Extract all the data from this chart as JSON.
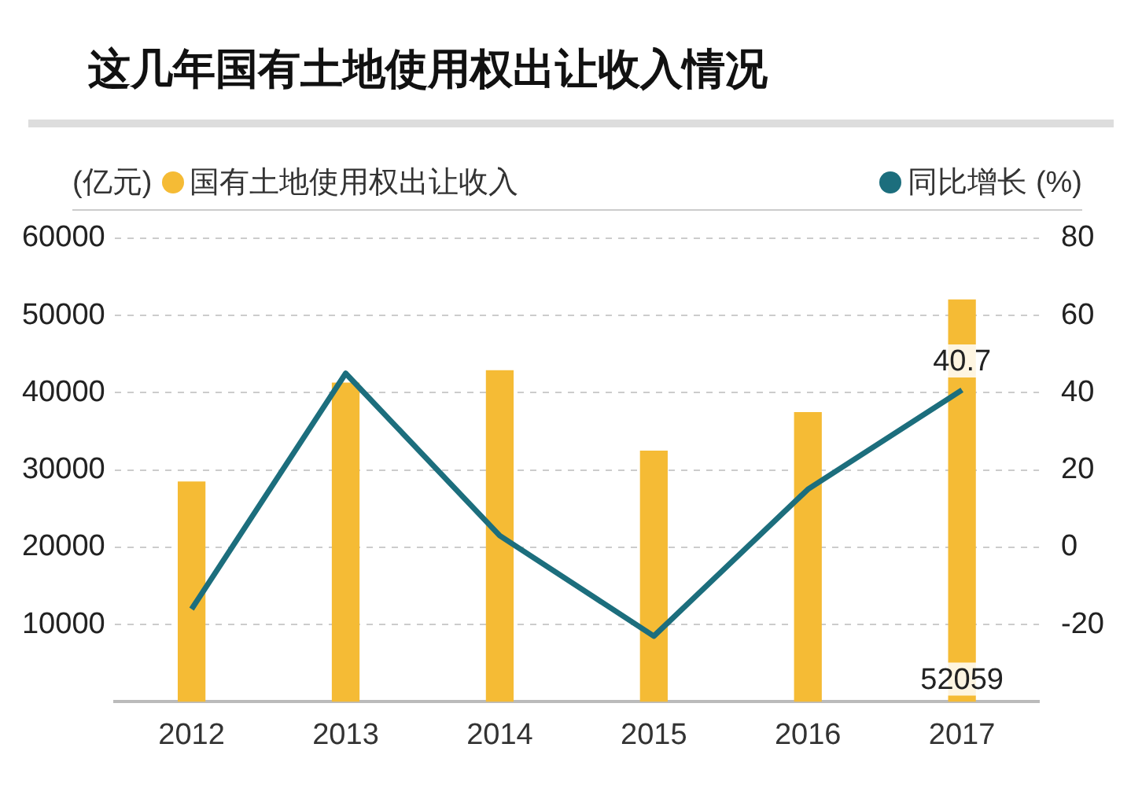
{
  "chart_data": {
    "type": "bar",
    "title": "这几年国有土地使用权出让收入情况",
    "ylabel": "(亿元)",
    "categories": [
      "2012",
      "2013",
      "2014",
      "2015",
      "2016",
      "2017"
    ],
    "series": [
      {
        "name": "国有土地使用权出让收入",
        "color": "#f5bb35",
        "values": [
          28500,
          41300,
          42900,
          32500,
          37500,
          52059
        ],
        "value_labels": [
          null,
          null,
          null,
          null,
          null,
          "52059"
        ]
      },
      {
        "name": "同比增长 (%)",
        "type": "line",
        "axis": "y2",
        "color": "#1c6e7d",
        "values": [
          -16,
          45,
          3,
          -23,
          15,
          40.7
        ],
        "value_labels": [
          null,
          null,
          null,
          null,
          null,
          "40.7"
        ]
      }
    ],
    "ylim": [
      0,
      60000
    ],
    "yticks": [
      10000,
      20000,
      30000,
      40000,
      50000,
      60000
    ],
    "y2lim": [
      -40,
      80
    ],
    "y2ticks": [
      -20,
      0,
      20,
      40,
      60,
      80
    ],
    "grid": "y",
    "legend": "top",
    "marker": "none",
    "line_style": "solid"
  }
}
